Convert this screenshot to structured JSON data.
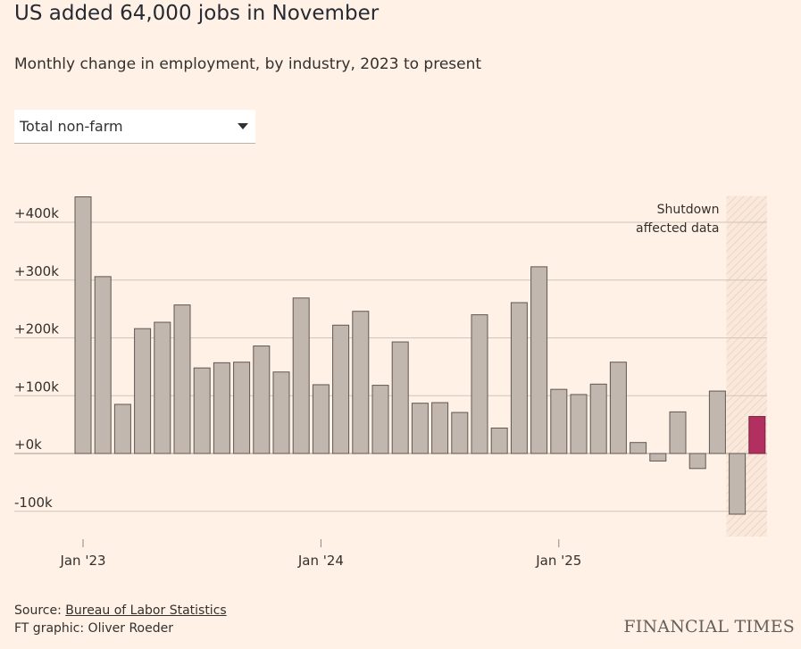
{
  "header": {
    "title": "US added 64,000 jobs in November",
    "subtitle": "Monthly change in employment, by industry, 2023 to present"
  },
  "selector": {
    "selected": "Total non-farm"
  },
  "chart_data": {
    "type": "bar",
    "categories": [
      "Jan '23",
      "Feb '23",
      "Mar '23",
      "Apr '23",
      "May '23",
      "Jun '23",
      "Jul '23",
      "Aug '23",
      "Sep '23",
      "Oct '23",
      "Nov '23",
      "Dec '23",
      "Jan '24",
      "Feb '24",
      "Mar '24",
      "Apr '24",
      "May '24",
      "Jun '24",
      "Jul '24",
      "Aug '24",
      "Sep '24",
      "Oct '24",
      "Nov '24",
      "Dec '24",
      "Jan '25",
      "Feb '25",
      "Mar '25",
      "Apr '25",
      "May '25",
      "Jun '25",
      "Jul '25",
      "Aug '25",
      "Sep '25",
      "Oct '25",
      "Nov '25"
    ],
    "values": [
      444,
      306,
      85,
      216,
      227,
      257,
      148,
      157,
      158,
      186,
      141,
      269,
      119,
      222,
      246,
      118,
      193,
      87,
      88,
      71,
      240,
      44,
      261,
      323,
      111,
      102,
      120,
      158,
      19,
      -13,
      72,
      -26,
      108,
      -105,
      64
    ],
    "xlabels": [
      "Jan '23",
      "Jan '24",
      "Jan '25"
    ],
    "ylim": [
      -150,
      450
    ],
    "yticks": [
      -100,
      0,
      100,
      200,
      300,
      400
    ],
    "ytick_labels": [
      "-100k",
      "+0k",
      "+100k",
      "+200k",
      "+300k",
      "+400k"
    ],
    "highlight": {
      "color": "#b1305f"
    },
    "bar_color": "#c1b7af",
    "shutdown_label_line1": "Shutdown",
    "shutdown_label_line2": "affected data"
  },
  "footer": {
    "source_prefix": "Source: ",
    "source_link": "Bureau of Labor Statistics",
    "credit": "FT graphic: Oliver Roeder",
    "logo": "FINANCIAL TIMES"
  }
}
